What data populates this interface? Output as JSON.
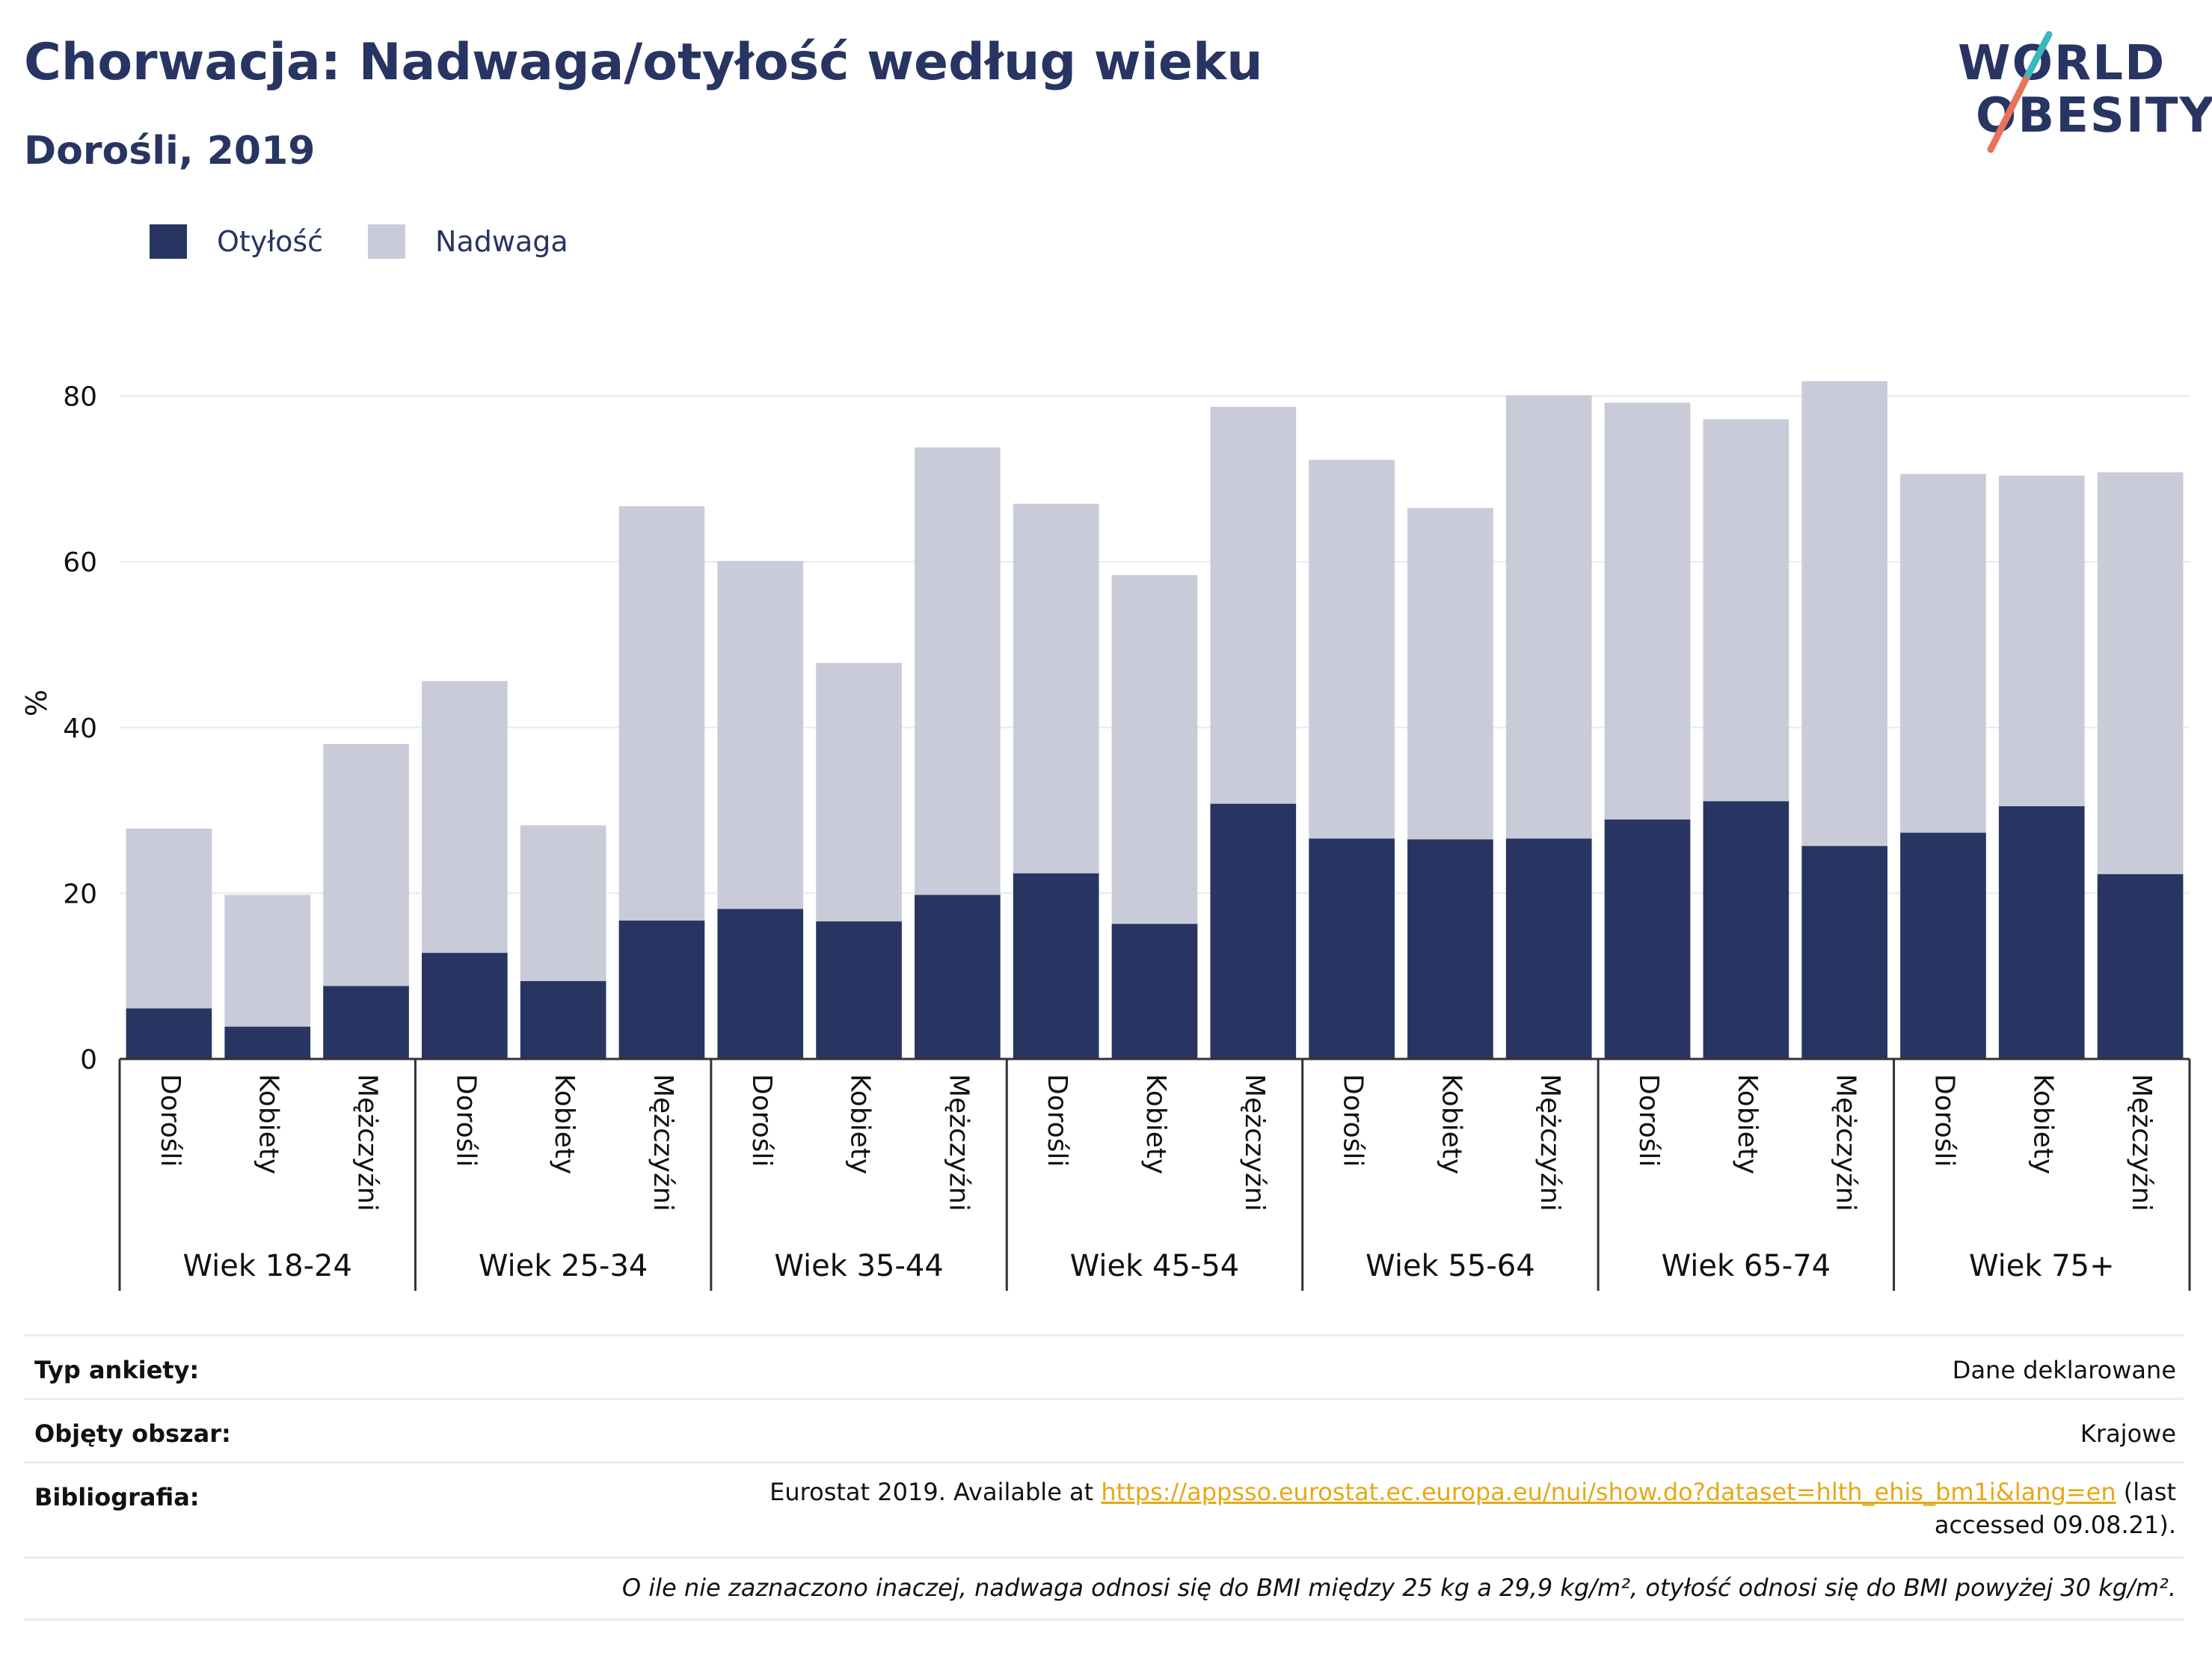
{
  "title": "Chorwacja: Nadwaga/otyłość według wieku",
  "subtitle": "Dorośli, 2019",
  "logo": {
    "line1": "WORLD",
    "line2": "OBESITY"
  },
  "legend": {
    "obesity_label": "Otyłość",
    "overweight_label": "Nadwaga",
    "obesity_color": "#283562",
    "overweight_color": "#c9ccd8"
  },
  "chart_data": {
    "type": "bar",
    "stacked": true,
    "ylabel": "%",
    "ylim": [
      0,
      90
    ],
    "yticks": [
      0,
      20,
      40,
      60,
      80
    ],
    "grid": true,
    "legend_position": "top-left",
    "groups": [
      "Wiek 18-24",
      "Wiek 25-34",
      "Wiek 35-44",
      "Wiek 45-54",
      "Wiek 55-64",
      "Wiek 65-74",
      "Wiek 75+"
    ],
    "subcategories": [
      "Dorośli",
      "Kobiety",
      "Mężczyźni"
    ],
    "series": [
      {
        "name": "Otyłość",
        "color": "#283562",
        "values": [
          6.1,
          3.9,
          8.8,
          12.8,
          9.4,
          16.7,
          18.1,
          16.6,
          19.8,
          22.4,
          16.3,
          30.8,
          26.6,
          26.5,
          26.6,
          28.9,
          31.1,
          25.7,
          27.3,
          30.5,
          22.3
        ]
      },
      {
        "name": "Nadwaga",
        "color": "#c9ccd8",
        "values": [
          21.7,
          15.9,
          29.2,
          32.8,
          18.8,
          50.0,
          42.0,
          31.2,
          54.0,
          44.6,
          42.1,
          47.9,
          45.7,
          40.0,
          53.5,
          50.3,
          46.1,
          56.1,
          43.3,
          39.9,
          48.5
        ]
      }
    ]
  },
  "info": {
    "survey_type_label": "Typ ankiety:",
    "survey_type_value": "Dane deklarowane",
    "coverage_label": "Objęty obszar:",
    "coverage_value": "Krajowe",
    "bibliography_label": "Bibliografia:",
    "bibliography_prefix": "Eurostat 2019. Available at ",
    "bibliography_link": "https://appsso.eurostat.ec.europa.eu/nui/show.do?dataset=hlth_ehis_bm1i&lang=en",
    "bibliography_suffix": " (last accessed 09.08.21).",
    "note": "O ile nie zaznaczono inaczej, nadwaga odnosi się do BMI między 25 kg a 29,9 kg/m², otyłość odnosi się do BMI powyżej 30 kg/m²."
  }
}
